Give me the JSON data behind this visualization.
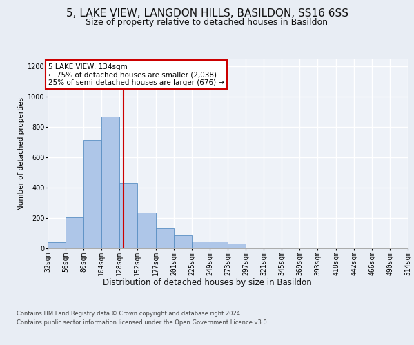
{
  "title_line1": "5, LAKE VIEW, LANGDON HILLS, BASILDON, SS16 6SS",
  "title_line2": "Size of property relative to detached houses in Basildon",
  "xlabel": "Distribution of detached houses by size in Basildon",
  "ylabel": "Number of detached properties",
  "footer_line1": "Contains HM Land Registry data © Crown copyright and database right 2024.",
  "footer_line2": "Contains public sector information licensed under the Open Government Licence v3.0.",
  "annotation_line1": "5 LAKE VIEW: 134sqm",
  "annotation_line2": "← 75% of detached houses are smaller (2,038)",
  "annotation_line3": "25% of semi-detached houses are larger (676) →",
  "bar_edges": [
    32,
    56,
    80,
    104,
    128,
    152,
    177,
    201,
    225,
    249,
    273,
    297,
    321,
    345,
    369,
    393,
    418,
    442,
    466,
    490,
    514
  ],
  "bar_heights": [
    40,
    205,
    715,
    870,
    430,
    235,
    130,
    85,
    45,
    45,
    30,
    5,
    0,
    0,
    0,
    0,
    0,
    0,
    0,
    0
  ],
  "bar_color": "#aec6e8",
  "bar_edge_color": "#5a8fc3",
  "red_line_x": 134,
  "annotation_box_color": "#ffffff",
  "annotation_box_edge": "#cc0000",
  "background_color": "#e8edf4",
  "plot_background": "#eef2f8",
  "grid_color": "#ffffff",
  "ylim": [
    0,
    1250
  ],
  "yticks": [
    0,
    200,
    400,
    600,
    800,
    1000,
    1200
  ],
  "title_fontsize": 11,
  "subtitle_fontsize": 9,
  "xlabel_fontsize": 8.5,
  "ylabel_fontsize": 7.5,
  "tick_fontsize": 7,
  "footer_fontsize": 6,
  "annotation_fontsize": 7.5
}
